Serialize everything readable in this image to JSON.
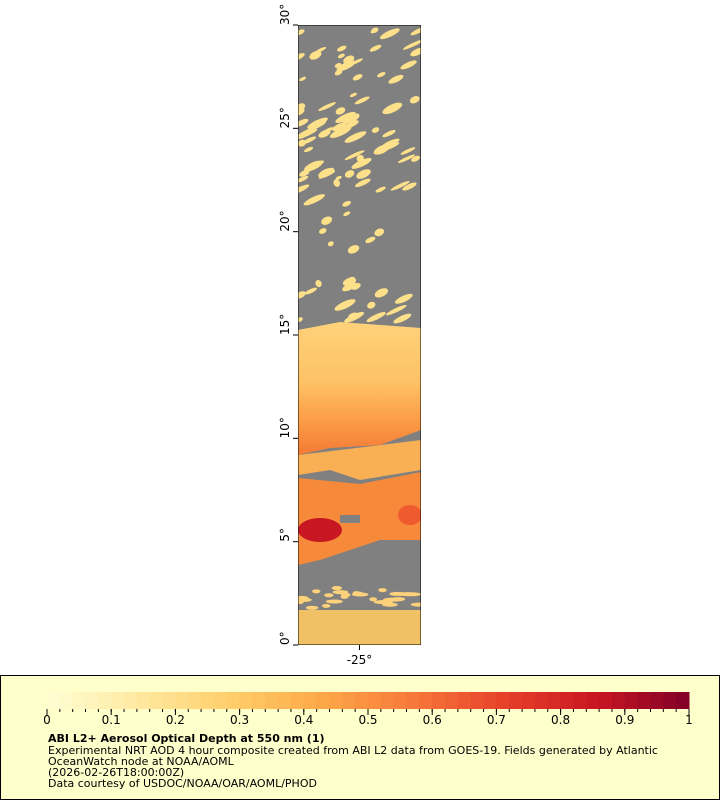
{
  "map": {
    "ylim": [
      0,
      30
    ],
    "xlim": [
      -28,
      -22
    ],
    "yticks": [
      {
        "value": 0,
        "label": "0°"
      },
      {
        "value": 5,
        "label": "5°"
      },
      {
        "value": 10,
        "label": "10°"
      },
      {
        "value": 15,
        "label": "15°"
      },
      {
        "value": 20,
        "label": "20°"
      },
      {
        "value": 25,
        "label": "25°"
      },
      {
        "value": 30,
        "label": "30°"
      }
    ],
    "xticks": [
      {
        "value": -25,
        "label": "-25°"
      }
    ]
  },
  "colorbar": {
    "range": [
      0,
      1
    ],
    "ticks": [
      0,
      0.1,
      0.2,
      0.3,
      0.4,
      0.5,
      0.6,
      0.7,
      0.8,
      0.9,
      1
    ],
    "colors": [
      "#ffffd4",
      "#ffe9a0",
      "#ffce6a",
      "#fda848",
      "#f7783a",
      "#e6402a",
      "#c81622",
      "#800026"
    ]
  },
  "legend": {
    "title": "ABI L2+ Aerosol Optical Depth at 550 nm (1)",
    "lines": [
      "Experimental NRT AOD 4 hour composite created from ABI L2 data from GOES-19. Fields generated by Atlantic",
      "OceanWatch node at NOAA/AOML",
      "(2026-02-26T18:00:00Z)",
      "Data courtesy of USDOC/NOAA/OAR/AOML/PHOD"
    ]
  }
}
